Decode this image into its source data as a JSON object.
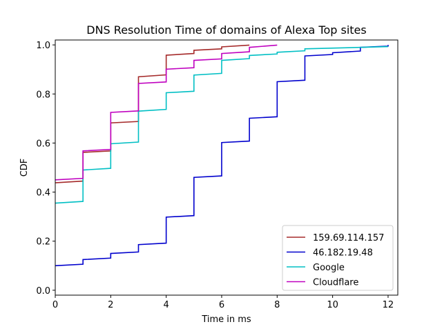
{
  "chart_data": {
    "type": "line",
    "step": true,
    "title": "DNS Resolution Time of domains of Alexa Top sites",
    "xlabel": "Time in ms",
    "ylabel": "CDF",
    "xlim": [
      0,
      12.35
    ],
    "ylim": [
      -0.02,
      1.02
    ],
    "xticks": [
      0,
      2,
      4,
      6,
      8,
      10,
      12
    ],
    "yticks": [
      0.0,
      0.2,
      0.4,
      0.6,
      0.8,
      1.0
    ],
    "xtick_labels": [
      "0",
      "2",
      "4",
      "6",
      "8",
      "10",
      "12"
    ],
    "ytick_labels": [
      "0.0",
      "0.2",
      "0.4",
      "0.6",
      "0.8",
      "1.0"
    ],
    "grid": false,
    "legend_position": "lower-right",
    "series": [
      {
        "name": "159.69.114.157",
        "color": "#a52a2a",
        "points": [
          [
            0,
            0.438
          ],
          [
            1,
            0.445
          ],
          [
            1,
            0.562
          ],
          [
            2,
            0.568
          ],
          [
            2,
            0.682
          ],
          [
            3,
            0.688
          ],
          [
            3,
            0.87
          ],
          [
            4,
            0.878
          ],
          [
            4,
            0.958
          ],
          [
            5,
            0.965
          ],
          [
            5,
            0.978
          ],
          [
            6,
            0.984
          ],
          [
            6,
            0.992
          ],
          [
            7,
            0.999
          ]
        ]
      },
      {
        "name": "46.182.19.48",
        "color": "#0000cd",
        "points": [
          [
            0,
            0.1
          ],
          [
            1,
            0.106
          ],
          [
            1,
            0.125
          ],
          [
            2,
            0.131
          ],
          [
            2,
            0.15
          ],
          [
            3,
            0.156
          ],
          [
            3,
            0.186
          ],
          [
            4,
            0.192
          ],
          [
            4,
            0.298
          ],
          [
            5,
            0.304
          ],
          [
            5,
            0.46
          ],
          [
            6,
            0.466
          ],
          [
            6,
            0.602
          ],
          [
            7,
            0.608
          ],
          [
            7,
            0.701
          ],
          [
            8,
            0.707
          ],
          [
            8,
            0.85
          ],
          [
            9,
            0.856
          ],
          [
            9,
            0.955
          ],
          [
            10,
            0.961
          ],
          [
            10,
            0.968
          ],
          [
            11,
            0.975
          ],
          [
            11,
            0.99
          ],
          [
            12,
            0.995
          ],
          [
            12,
            1.0
          ]
        ]
      },
      {
        "name": "Google",
        "color": "#00bfc4",
        "points": [
          [
            0,
            0.355
          ],
          [
            1,
            0.362
          ],
          [
            1,
            0.49
          ],
          [
            2,
            0.497
          ],
          [
            2,
            0.597
          ],
          [
            3,
            0.604
          ],
          [
            3,
            0.73
          ],
          [
            4,
            0.737
          ],
          [
            4,
            0.805
          ],
          [
            5,
            0.811
          ],
          [
            5,
            0.877
          ],
          [
            6,
            0.884
          ],
          [
            6,
            0.937
          ],
          [
            7,
            0.944
          ],
          [
            7,
            0.957
          ],
          [
            8,
            0.963
          ],
          [
            8,
            0.97
          ],
          [
            9,
            0.976
          ],
          [
            9,
            0.984
          ],
          [
            12,
            0.993
          ]
        ]
      },
      {
        "name": "Cloudflare",
        "color": "#bf00bf",
        "points": [
          [
            0,
            0.45
          ],
          [
            1,
            0.456
          ],
          [
            1,
            0.568
          ],
          [
            2,
            0.574
          ],
          [
            2,
            0.725
          ],
          [
            3,
            0.731
          ],
          [
            3,
            0.843
          ],
          [
            4,
            0.849
          ],
          [
            4,
            0.901
          ],
          [
            5,
            0.907
          ],
          [
            5,
            0.937
          ],
          [
            6,
            0.943
          ],
          [
            6,
            0.965
          ],
          [
            7,
            0.972
          ],
          [
            7,
            0.99
          ],
          [
            8,
            0.999
          ]
        ]
      }
    ]
  }
}
